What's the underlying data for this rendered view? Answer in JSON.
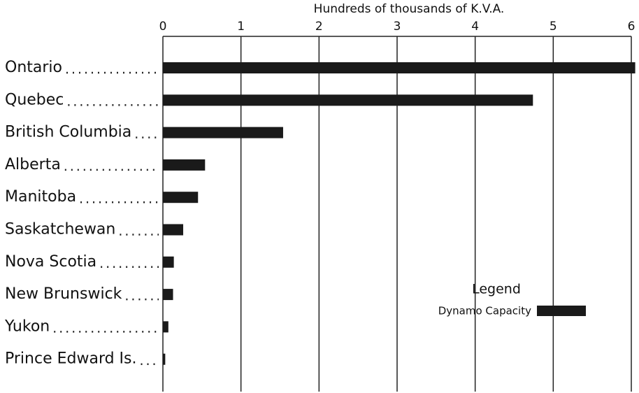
{
  "chart_data": {
    "type": "bar",
    "orientation": "horizontal",
    "x_label": "Hundreds of thousands of K.V.A.",
    "categories": [
      "Ontario",
      "Quebec",
      "British Columbia",
      "Alberta",
      "Manitoba",
      "Saskatchewan",
      "Nova Scotia",
      "New Brunswick",
      "Yukon",
      "Prince Edward Is."
    ],
    "series": [
      {
        "name": "Dynamo Capacity",
        "color": "#1a1a1a",
        "values": [
          6.05,
          4.74,
          1.54,
          0.54,
          0.45,
          0.26,
          0.14,
          0.13,
          0.07,
          0.03
        ]
      }
    ],
    "legend_title": "Legend",
    "legend": "lower right",
    "xlim": [
      0,
      6
    ],
    "xticks": [
      0,
      1,
      2,
      3,
      4,
      5,
      6
    ],
    "grid": true
  }
}
